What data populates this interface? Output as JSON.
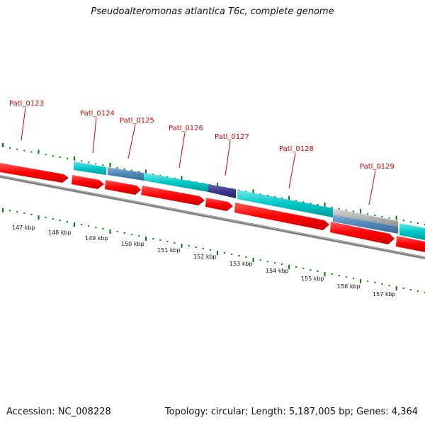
{
  "title": "Pseudoalteromonas atlantica T6c, complete genome",
  "footer": {
    "accession": "Accession: NC_008228",
    "stats": "Topology: circular; Length: 5,187,005 bp; Genes: 4,364"
  },
  "genes": [
    {
      "label": "Patl_0123"
    },
    {
      "label": "Patl_0124"
    },
    {
      "label": "Patl_0125"
    },
    {
      "label": "Patl_0126"
    },
    {
      "label": "Patl_0127"
    },
    {
      "label": "Patl_0128"
    },
    {
      "label": "Patl_0129"
    }
  ],
  "kbp_ticks": [
    "147 kbp",
    "148 kbp",
    "149 kbp",
    "150 kbp",
    "151 kbp",
    "152 kbp",
    "153 kbp",
    "154 kbp",
    "155 kbp",
    "156 kbp",
    "157 kbp"
  ],
  "colors": {
    "forward_cds": "#ff0000",
    "cog_teal": "#00c8c8",
    "cog_steel": "#4f86b8",
    "cog_navy": "#3a3a8c",
    "cog_gray": "#b4b4b4",
    "backbone": "#808080",
    "gc_tick": "#008000",
    "label": "#cc0000"
  }
}
